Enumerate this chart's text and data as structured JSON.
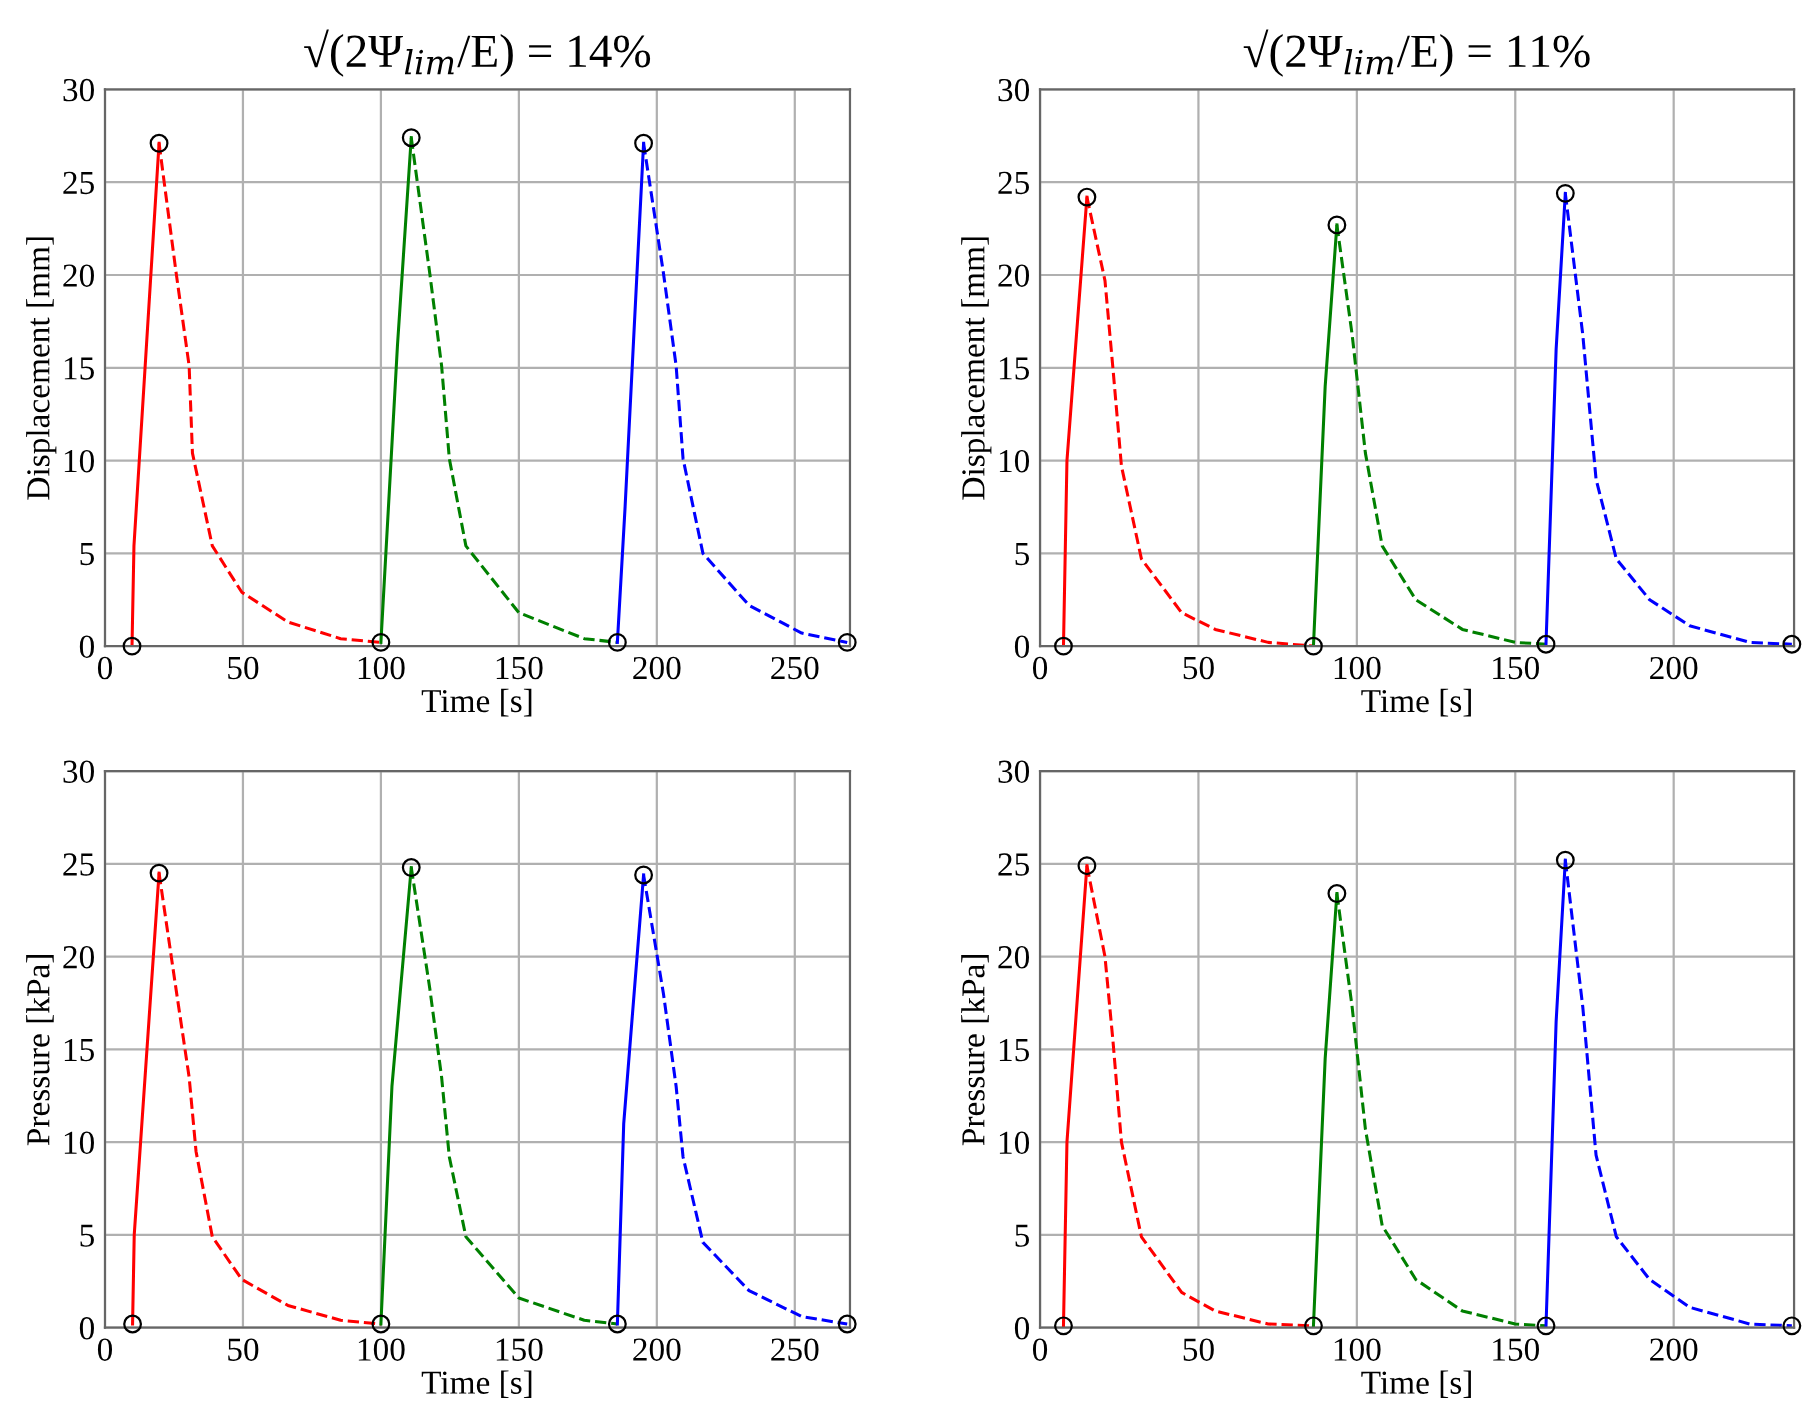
{
  "chart_data": [
    {
      "type": "line",
      "title": "√(2Ψ$_{lim}$/E) = 14%",
      "xlabel": "Time [s]",
      "ylabel": "Displacement [mm]",
      "xlim": [
        0,
        270
      ],
      "xticks": [
        0,
        50,
        100,
        150,
        200,
        250
      ],
      "ylim": [
        0,
        30
      ],
      "yticks": [
        0,
        5,
        10,
        15,
        20,
        25,
        30
      ],
      "grid": true,
      "series": [
        {
          "color": "#ff0000",
          "line_style": "solid",
          "x": [
            9.8,
            10.5,
            19.6
          ],
          "values": [
            0,
            5.4,
            27.1
          ]
        },
        {
          "color": "#ff0000",
          "line_style": "dashed",
          "x": [
            19.6,
            25.8,
            30.5,
            31.7,
            38.9,
            49.6,
            66.3,
            85.4,
            100
          ],
          "values": [
            27.1,
            20.1,
            15.1,
            10.4,
            5.4,
            2.9,
            1.3,
            0.4,
            0.2
          ]
        },
        {
          "color": "#008000",
          "line_style": "solid",
          "x": [
            100,
            106,
            111
          ],
          "values": [
            0.2,
            16.2,
            27.4
          ]
        },
        {
          "color": "#008000",
          "line_style": "dashed",
          "x": [
            111,
            117.7,
            122,
            124.8,
            130.8,
            150,
            173.7,
            185.7
          ],
          "values": [
            27.4,
            20.1,
            15.1,
            10.1,
            5.4,
            1.8,
            0.4,
            0.2
          ]
        },
        {
          "color": "#0000ff",
          "line_style": "solid",
          "x": [
            185.7,
            188.5,
            195.2
          ],
          "values": [
            0.2,
            7.5,
            27.1
          ]
        },
        {
          "color": "#0000ff",
          "line_style": "dashed",
          "x": [
            195.2,
            202.4,
            207,
            209.5,
            216.7,
            233.4,
            252.5,
            269
          ],
          "values": [
            27.1,
            20.1,
            15.1,
            10.1,
            5,
            2.2,
            0.7,
            0.2
          ]
        },
        {
          "type": "scatter",
          "color": "#000000",
          "marker": "circle",
          "x": [
            9.8,
            19.6,
            100,
            111,
            185.7,
            195.2,
            269
          ],
          "values": [
            0,
            27.1,
            0.2,
            27.4,
            0.2,
            27.1,
            0.2
          ]
        }
      ]
    },
    {
      "type": "line",
      "title": "√(2Ψ$_{lim}$/E) = 11%",
      "xlabel": "Time [s]",
      "ylabel": "Displacement [mm]",
      "xlim": [
        0,
        238
      ],
      "xticks": [
        0,
        50,
        100,
        150,
        200
      ],
      "ylim": [
        0,
        30
      ],
      "yticks": [
        0,
        5,
        10,
        15,
        20,
        25,
        30
      ],
      "grid": true,
      "series": [
        {
          "color": "#ff0000",
          "line_style": "solid",
          "x": [
            7.4,
            8.5,
            14.8
          ],
          "values": [
            0,
            10,
            24.2
          ]
        },
        {
          "color": "#ff0000",
          "line_style": "dashed",
          "x": [
            14.8,
            20.5,
            23,
            25.7,
            32,
            44.7,
            55.3,
            72,
            86.3
          ],
          "values": [
            24.2,
            19.7,
            15,
            9.7,
            4.7,
            1.8,
            0.9,
            0.2,
            0
          ]
        },
        {
          "color": "#008000",
          "line_style": "solid",
          "x": [
            86.3,
            90,
            93.7
          ],
          "values": [
            0,
            14,
            22.7
          ]
        },
        {
          "color": "#008000",
          "line_style": "dashed",
          "x": [
            93.7,
            98.5,
            102.7,
            108,
            118.6,
            133.3,
            150,
            159.7
          ],
          "values": [
            22.7,
            16.8,
            10.4,
            5.4,
            2.5,
            0.9,
            0.2,
            0.1
          ]
        },
        {
          "color": "#0000ff",
          "line_style": "solid",
          "x": [
            159.7,
            162.9,
            165.8
          ],
          "values": [
            0.1,
            16,
            24.4
          ]
        },
        {
          "color": "#0000ff",
          "line_style": "dashed",
          "x": [
            165.8,
            171.3,
            175.5,
            181.9,
            192.4,
            205,
            224,
            237.3
          ],
          "values": [
            24.4,
            16.8,
            9,
            4.7,
            2.5,
            1.1,
            0.2,
            0.1
          ]
        },
        {
          "type": "scatter",
          "color": "#000000",
          "marker": "circle",
          "x": [
            7.4,
            14.8,
            86.3,
            93.7,
            159.7,
            165.8,
            237.3
          ],
          "values": [
            0,
            24.2,
            0,
            22.7,
            0.1,
            24.4,
            0.1
          ]
        }
      ]
    },
    {
      "type": "line",
      "xlabel": "Time [s]",
      "ylabel": "Pressure [kPa]",
      "xlim": [
        0,
        270
      ],
      "xticks": [
        0,
        50,
        100,
        150,
        200,
        250
      ],
      "ylim": [
        0,
        30
      ],
      "yticks": [
        0,
        5,
        10,
        15,
        20,
        25,
        30
      ],
      "grid": true,
      "series": [
        {
          "color": "#ff0000",
          "line_style": "solid",
          "x": [
            10,
            10.6,
            19.6
          ],
          "values": [
            0.2,
            5,
            24.5
          ]
        },
        {
          "color": "#ff0000",
          "line_style": "dashed",
          "x": [
            19.6,
            25.8,
            30.5,
            33,
            38.9,
            49.6,
            66.3,
            85.4,
            100
          ],
          "values": [
            24.5,
            18.2,
            13.5,
            9.5,
            4.9,
            2.6,
            1.2,
            0.4,
            0.2
          ]
        },
        {
          "color": "#008000",
          "line_style": "solid",
          "x": [
            100,
            104,
            111
          ],
          "values": [
            0.2,
            13,
            24.8
          ]
        },
        {
          "color": "#008000",
          "line_style": "dashed",
          "x": [
            111,
            117.7,
            122,
            124.8,
            130.8,
            150,
            173.7,
            185.7
          ],
          "values": [
            24.8,
            18.3,
            13.5,
            9.2,
            4.9,
            1.6,
            0.4,
            0.2
          ]
        },
        {
          "color": "#0000ff",
          "line_style": "solid",
          "x": [
            185.7,
            188,
            195.2
          ],
          "values": [
            0.2,
            11,
            24.4
          ]
        },
        {
          "color": "#0000ff",
          "line_style": "dashed",
          "x": [
            195.2,
            202.4,
            207,
            209.5,
            216.7,
            233.4,
            252.5,
            269
          ],
          "values": [
            24.4,
            18,
            13,
            9.2,
            4.6,
            2,
            0.6,
            0.2
          ]
        },
        {
          "type": "scatter",
          "color": "#000000",
          "marker": "circle",
          "x": [
            10,
            19.6,
            100,
            111,
            185.7,
            195.2,
            269
          ],
          "values": [
            0.2,
            24.5,
            0.2,
            24.8,
            0.2,
            24.4,
            0.2
          ]
        }
      ]
    },
    {
      "type": "line",
      "xlabel": "Time [s]",
      "ylabel": "Pressure [kPa]",
      "xlim": [
        0,
        238
      ],
      "xticks": [
        0,
        50,
        100,
        150,
        200
      ],
      "ylim": [
        0,
        30
      ],
      "yticks": [
        0,
        5,
        10,
        15,
        20,
        25,
        30
      ],
      "grid": true,
      "series": [
        {
          "color": "#ff0000",
          "line_style": "solid",
          "x": [
            7.4,
            8.5,
            14.8
          ],
          "values": [
            0.1,
            10,
            24.9
          ]
        },
        {
          "color": "#ff0000",
          "line_style": "dashed",
          "x": [
            14.8,
            20.5,
            23,
            25.7,
            32,
            44.7,
            55.3,
            72,
            86.3
          ],
          "values": [
            24.9,
            20,
            15.5,
            10,
            4.9,
            1.9,
            0.9,
            0.2,
            0.1
          ]
        },
        {
          "color": "#008000",
          "line_style": "solid",
          "x": [
            86.3,
            90,
            93.7
          ],
          "values": [
            0.1,
            14.5,
            23.4
          ]
        },
        {
          "color": "#008000",
          "line_style": "dashed",
          "x": [
            93.7,
            98.5,
            102.7,
            108,
            118.6,
            133.3,
            150,
            159.7
          ],
          "values": [
            23.4,
            17.3,
            10.7,
            5.5,
            2.6,
            0.9,
            0.2,
            0.1
          ]
        },
        {
          "color": "#0000ff",
          "line_style": "solid",
          "x": [
            159.7,
            162.9,
            165.8
          ],
          "values": [
            0.1,
            16.5,
            25.2
          ]
        },
        {
          "color": "#0000ff",
          "line_style": "dashed",
          "x": [
            165.8,
            171.3,
            175.5,
            181.9,
            192.4,
            205,
            224,
            237.3
          ],
          "values": [
            25.2,
            17.3,
            9.3,
            4.9,
            2.6,
            1.1,
            0.2,
            0.1
          ]
        },
        {
          "type": "scatter",
          "color": "#000000",
          "marker": "circle",
          "x": [
            7.4,
            14.8,
            86.3,
            93.7,
            159.7,
            165.8,
            237.3
          ],
          "values": [
            0.1,
            24.9,
            0.1,
            23.4,
            0.1,
            25.2,
            0.1
          ]
        }
      ]
    }
  ]
}
